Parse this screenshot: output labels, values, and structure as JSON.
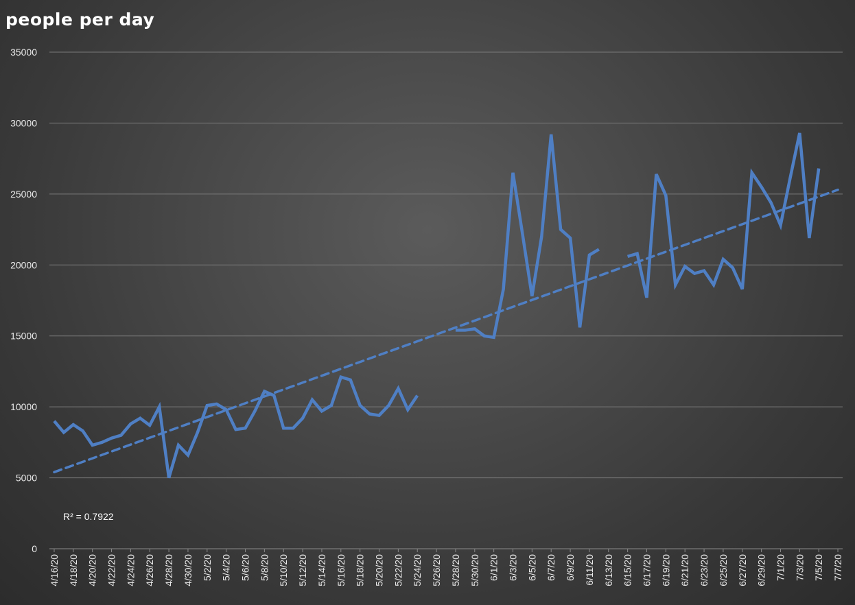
{
  "chart_data": {
    "type": "line",
    "title": "people per day",
    "xlabel": "",
    "ylabel": "",
    "ylim": [
      0,
      35000
    ],
    "yticks": [
      0,
      5000,
      10000,
      15000,
      20000,
      25000,
      30000,
      35000
    ],
    "grid": true,
    "legend": "none",
    "x_tick_labels": [
      "4/16/20",
      "4/18/20",
      "4/20/20",
      "4/22/20",
      "4/24/20",
      "4/26/20",
      "4/28/20",
      "4/30/20",
      "5/2/20",
      "5/4/20",
      "5/6/20",
      "5/8/20",
      "5/10/20",
      "5/12/20",
      "5/14/20",
      "5/16/20",
      "5/18/20",
      "5/20/20",
      "5/22/20",
      "5/24/20",
      "5/26/20",
      "5/28/20",
      "5/30/20",
      "6/1/20",
      "6/3/20",
      "6/5/20",
      "6/7/20",
      "6/9/20",
      "6/11/20",
      "6/13/20",
      "6/15/20",
      "6/17/20",
      "6/19/20",
      "6/21/20",
      "6/23/20",
      "6/25/20",
      "6/27/20",
      "6/29/20",
      "7/1/20",
      "7/3/20",
      "7/5/20",
      "7/7/20"
    ],
    "series": [
      {
        "dates": [
          "4/16/20",
          "4/17/20",
          "4/18/20",
          "4/19/20",
          "4/20/20",
          "4/21/20",
          "4/22/20",
          "4/23/20",
          "4/24/20",
          "4/25/20",
          "4/26/20",
          "4/27/20",
          "4/28/20",
          "4/29/20",
          "4/30/20",
          "5/1/20",
          "5/2/20",
          "5/3/20",
          "5/4/20",
          "5/5/20",
          "5/6/20",
          "5/7/20",
          "5/8/20",
          "5/9/20",
          "5/10/20",
          "5/11/20",
          "5/12/20",
          "5/13/20",
          "5/14/20",
          "5/15/20",
          "5/16/20",
          "5/17/20",
          "5/18/20",
          "5/19/20",
          "5/20/20",
          "5/21/20",
          "5/22/20",
          "5/23/20",
          "5/24/20",
          "5/25/20",
          "5/26/20",
          "5/27/20",
          "5/28/20",
          "5/29/20",
          "5/30/20",
          "5/31/20",
          "6/1/20",
          "6/2/20",
          "6/3/20",
          "6/4/20",
          "6/5/20",
          "6/6/20",
          "6/7/20",
          "6/8/20",
          "6/9/20",
          "6/10/20",
          "6/11/20",
          "6/12/20",
          "6/13/20",
          "6/14/20",
          "6/15/20",
          "6/16/20",
          "6/17/20",
          "6/18/20",
          "6/19/20",
          "6/20/20",
          "6/21/20",
          "6/22/20",
          "6/23/20",
          "6/24/20",
          "6/25/20",
          "6/26/20",
          "6/27/20",
          "6/28/20",
          "6/29/20",
          "6/30/20",
          "7/1/20",
          "7/2/20",
          "7/3/20",
          "7/4/20",
          "7/5/20",
          "7/6/20"
        ],
        "values": [
          9000,
          8200,
          8750,
          8300,
          7300,
          7500,
          7800,
          8000,
          8800,
          9200,
          8700,
          10000,
          5000,
          7300,
          6600,
          8200,
          10100,
          10200,
          9800,
          8400,
          8500,
          9700,
          11100,
          10800,
          8500,
          8500,
          9200,
          10500,
          9700,
          10100,
          12100,
          11900,
          10100,
          9500,
          9400,
          10100,
          11300,
          9800,
          10800,
          null,
          null,
          null,
          15400,
          15400,
          15500,
          15000,
          14900,
          18300,
          26500,
          22200,
          17800,
          22000,
          29200,
          22500,
          21900,
          15600,
          20700,
          21100,
          null,
          null,
          20600,
          20800,
          17700,
          26400,
          24900,
          18600,
          19900,
          19400,
          19600,
          18600,
          20400,
          19800,
          18300,
          26500,
          25500,
          24400,
          22800,
          26100,
          29300,
          21900,
          26800,
          null
        ]
      }
    ],
    "trendline": {
      "type": "linear",
      "start": 5400,
      "end": 25300
    },
    "annotation": "R² = 0.7922",
    "colors": {
      "line": "#4f7fc4",
      "grid": "#7a7a7a"
    }
  }
}
